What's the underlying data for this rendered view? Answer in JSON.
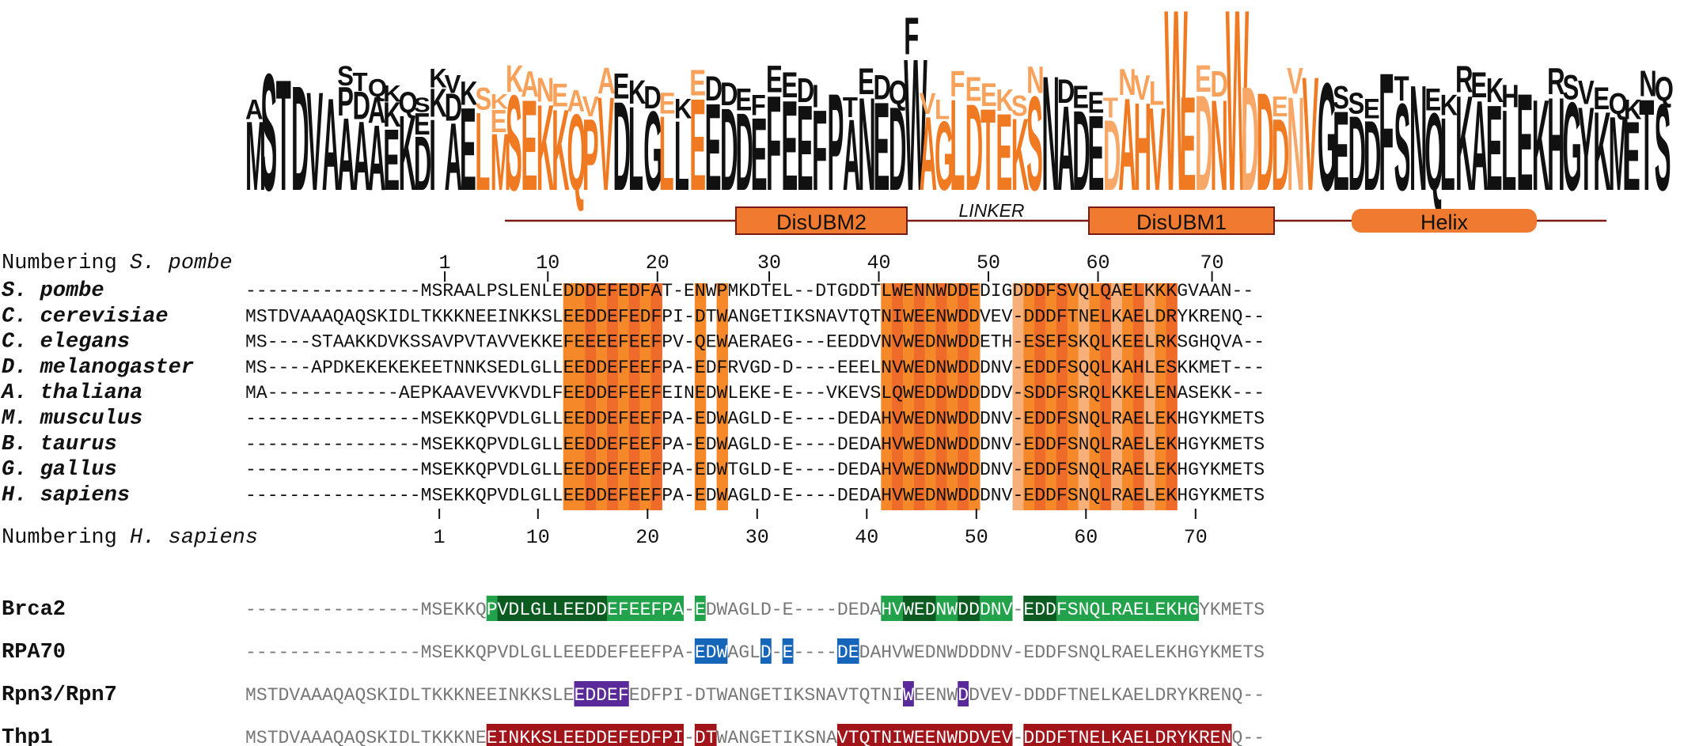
{
  "logo": {
    "name": "sequence-logo",
    "letters_legend": "",
    "stacks": [
      [
        "M",
        "A"
      ],
      [
        "S"
      ],
      [
        "T"
      ],
      [
        "D"
      ],
      [
        "V"
      ],
      [
        "A"
      ],
      [
        "A",
        "P",
        "S"
      ],
      [
        "A",
        "D",
        "T"
      ],
      [
        "A",
        "A",
        "Q"
      ],
      [
        "E",
        "K",
        "K"
      ],
      [
        "K",
        "Q"
      ],
      [
        "D",
        "E",
        "S"
      ],
      [
        "I",
        "K",
        "K"
      ],
      [
        "A",
        "D",
        "V"
      ],
      [
        "E",
        "K"
      ],
      [
        "L",
        "S"
      ],
      [
        "M",
        "E",
        "K"
      ],
      [
        "S",
        "K"
      ],
      [
        "E",
        "A"
      ],
      [
        "K",
        "N"
      ],
      [
        "K",
        "E"
      ],
      [
        "Q",
        "A"
      ],
      [
        "P",
        "V"
      ],
      [
        "V",
        "A"
      ],
      [
        "D",
        "E"
      ],
      [
        "L",
        "K"
      ],
      [
        "G",
        "D"
      ],
      [
        "L",
        "E"
      ],
      [
        "L",
        "K"
      ],
      [
        "E",
        "E"
      ],
      [
        "E",
        "D"
      ],
      [
        "D",
        "D"
      ],
      [
        "D",
        "E"
      ],
      [
        "E",
        "F"
      ],
      [
        "F",
        "E"
      ],
      [
        "E",
        "E"
      ],
      [
        "E",
        "D"
      ],
      [
        "F",
        "I"
      ],
      [
        "P"
      ],
      [
        "A",
        "T"
      ],
      [
        "N",
        "E"
      ],
      [
        "E",
        "D"
      ],
      [
        "D",
        "Q"
      ],
      [
        "W",
        "F"
      ],
      [
        "A",
        "V"
      ],
      [
        "G",
        "L"
      ],
      [
        "L",
        "F"
      ],
      [
        "D",
        "E"
      ],
      [
        "T",
        "E"
      ],
      [
        "E",
        "K"
      ],
      [
        "K",
        "S"
      ],
      [
        "S",
        "N"
      ],
      [
        "N"
      ],
      [
        "A",
        "D"
      ],
      [
        "D",
        "E"
      ],
      [
        "E",
        "E"
      ],
      [
        "D",
        "T"
      ],
      [
        "A",
        "N"
      ],
      [
        "H",
        "V"
      ],
      [
        "V",
        "L"
      ],
      [
        "W"
      ],
      [
        "E"
      ],
      [
        "D",
        "E"
      ],
      [
        "N",
        "D"
      ],
      [
        "W"
      ],
      [
        "D"
      ],
      [
        "D"
      ],
      [
        "D",
        "E"
      ],
      [
        "N",
        "V"
      ],
      [
        "V"
      ],
      [
        "G"
      ],
      [
        "E",
        "S"
      ],
      [
        "D",
        "S"
      ],
      [
        "D",
        "E"
      ],
      [
        "F"
      ],
      [
        "S",
        "T"
      ],
      [
        "N"
      ],
      [
        "Q",
        "E"
      ],
      [
        "L",
        "K"
      ],
      [
        "K",
        "R"
      ],
      [
        "A",
        "E"
      ],
      [
        "E",
        "K"
      ],
      [
        "L",
        "H"
      ],
      [
        "E"
      ],
      [
        "K"
      ],
      [
        "H",
        "R"
      ],
      [
        "G",
        "S"
      ],
      [
        "Y",
        "V"
      ],
      [
        "K",
        "E"
      ],
      [
        "M",
        "Q"
      ],
      [
        "E",
        "K"
      ],
      [
        "T",
        "N"
      ],
      [
        "S",
        "Q"
      ]
    ]
  },
  "domains": {
    "disubm2": "DisUBM2",
    "linker": "LINKER",
    "disubm1": "DisUBM1",
    "helix": "Helix"
  },
  "numbering_top": {
    "prefix": "Numbering ",
    "species": "S. pombe",
    "ticks": [
      {
        "label": "1",
        "col": 18.2
      },
      {
        "label": "10",
        "col": 27.6
      },
      {
        "label": "20",
        "col": 37.6
      },
      {
        "label": "30",
        "col": 47.8
      },
      {
        "label": "40",
        "col": 57.8
      },
      {
        "label": "50",
        "col": 67.8
      },
      {
        "label": "60",
        "col": 77.8
      },
      {
        "label": "70",
        "col": 88.2
      }
    ]
  },
  "numbering_bottom": {
    "prefix": "Numbering ",
    "species": "H. sapiens",
    "ticks": [
      {
        "label": "1",
        "col": 17.7
      },
      {
        "label": "10",
        "col": 26.7
      },
      {
        "label": "20",
        "col": 36.7
      },
      {
        "label": "30",
        "col": 46.7
      },
      {
        "label": "40",
        "col": 56.7
      },
      {
        "label": "50",
        "col": 66.7
      },
      {
        "label": "60",
        "col": 76.7
      },
      {
        "label": "70",
        "col": 86.7
      }
    ]
  },
  "alignment": [
    {
      "name": "S. pombe",
      "seq": "----------------MSRAALPSLENLEDDDEFEDFAT-ENWPMKDTEL--DTGDDTLWENNWDDEDIGDDDFSVQLQAELKKKGVAAN--"
    },
    {
      "name": "C. cerevisiae",
      "seq": "MSTDVAAAQAQSKIDLTKKKNEEINKKSLEEDDEFEDFPI-DTWANGETIKSNAVTQTNIWEENWDDVEV-DDDFTNELKAELDRYKRENQ--"
    },
    {
      "name": "C. elegans",
      "seq": "MS----STAAKKDVKSSAVPVTAVVEKKEFEEEEFEEFPV-QEWAERAEG---EEDDVNVWEDNWDDETH-ESEFSKQLKEELRKSGHQVA--"
    },
    {
      "name": "D. melanogaster",
      "seq": "MS----APDKEKEKEKEETNNKSEDLGLLEEDDEFEEFPA-EDFRVGD-D----EEELNVWEDNWDDDNV-EDDFSQQLKAHLESKKMET---"
    },
    {
      "name": "A. thaliana",
      "seq": "MA------------AEPKAAVEVVKVDLFEEDDEFEEFEINEDWLEKE-E---VKEVSLQWEDDWDDDDV-SDDFSRQLKKELENASEKK---"
    },
    {
      "name": "M. musculus",
      "seq": "----------------MSEKKQPVDLGLLEEDDEFEEFPA-EDWAGLD-E----DEDAHVWEDNWDDDNV-EDDFSNQLRAELEKHGYKMETS"
    },
    {
      "name": "B. taurus",
      "seq": "----------------MSEKKQPVDLGLLEEDDEFEEFPA-EDWAGLD-E----DEDAHVWEDNWDDDNV-EDDFSNQLRAELEKHGYKMETS"
    },
    {
      "name": "G. gallus",
      "seq": "----------------MSEKKQPVDLGLLEEDDEFEEFPA-EDWTGLD-E----DEDAHVWEDNWDDDNV-EDDFSNQLRAELEKHGYKMETS"
    },
    {
      "name": "H. sapiens",
      "seq": "----------------MSEKKQPVDLGLLEEDDEFEEFPA-EDWAGLD-E----DEDAHVWEDNWDDDNV-EDDFSNQLRAELEKHGYKMETS"
    }
  ],
  "conservation": {
    "dark_orange": "#ef6b2a",
    "mid_orange": "#f5892a",
    "light_orange": "#f7b07a",
    "dark_cols": [
      31,
      33,
      35,
      37,
      59,
      61,
      63,
      65,
      72,
      74,
      78,
      81,
      84
    ],
    "mid_cols": [
      29,
      30,
      32,
      34,
      36,
      41,
      43,
      58,
      60,
      62,
      64,
      66,
      71,
      73,
      75,
      77,
      80,
      83
    ],
    "light_cols": [
      70,
      76,
      79,
      82
    ]
  },
  "interactions": [
    {
      "name": "Brca2",
      "seq": "----------------MSEKKQPVDLGLLEEDDEFEEFPA-EDWAGLD-E----DEDAHVWEDNWDDDNV-EDDFSNQLRAELEKHGYKMETS",
      "spans": [
        {
          "s": 22,
          "e": 39,
          "color": "#22a24a"
        },
        {
          "s": 41,
          "e": 41,
          "color": "#22a24a"
        },
        {
          "s": 58,
          "e": 69,
          "color": "#22a24a"
        },
        {
          "s": 71,
          "e": 86,
          "color": "#22a24a"
        }
      ],
      "dark": [
        {
          "s": 23,
          "e": 32,
          "color": "#0c5c22"
        },
        {
          "s": 60,
          "e": 62,
          "color": "#0c5c22"
        },
        {
          "s": 65,
          "e": 66,
          "color": "#0c5c22"
        },
        {
          "s": 71,
          "e": 73,
          "color": "#0c5c22"
        }
      ]
    },
    {
      "name": "RPA70",
      "seq": "----------------MSEKKQPVDLGLLEEDDEFEEFPA-EDWAGLD-E----DEDAHVWEDNWDDDNV-EDDFSNQLRAELEKHGYKMETS",
      "spans": [
        {
          "s": 41,
          "e": 43,
          "color": "#1565b8"
        },
        {
          "s": 47,
          "e": 47,
          "color": "#1565b8"
        },
        {
          "s": 49,
          "e": 49,
          "color": "#1565b8"
        },
        {
          "s": 54,
          "e": 55,
          "color": "#1565b8"
        }
      ],
      "dark": []
    },
    {
      "name": "Rpn3/Rpn7",
      "seq": "MSTDVAAAQAQSKIDLTKKKNEEINKKSLEEDDEFEDFPI-DTWANGETIKSNAVTQTNIWEENWDDVEV-DDDFTNELKAELDRYKRENQ--",
      "spans": [
        {
          "s": 30,
          "e": 34,
          "color": "#5b2a9a"
        },
        {
          "s": 60,
          "e": 60,
          "color": "#5b2a9a"
        },
        {
          "s": 65,
          "e": 65,
          "color": "#5b2a9a"
        }
      ],
      "dark": []
    },
    {
      "name": "Thp1",
      "seq": "MSTDVAAAQAQSKIDLTKKKNEEINKKSLEEDDEFEDFPI-DTWANGETIKSNAVTQTNIWEENWDDVEV-DDDFTNELKAELDRYKRENQ--",
      "spans": [
        {
          "s": 22,
          "e": 39,
          "color": "#a0141a"
        },
        {
          "s": 41,
          "e": 42,
          "color": "#a0141a"
        },
        {
          "s": 54,
          "e": 69,
          "color": "#a0141a"
        },
        {
          "s": 71,
          "e": 89,
          "color": "#a0141a"
        }
      ],
      "dark": []
    }
  ]
}
